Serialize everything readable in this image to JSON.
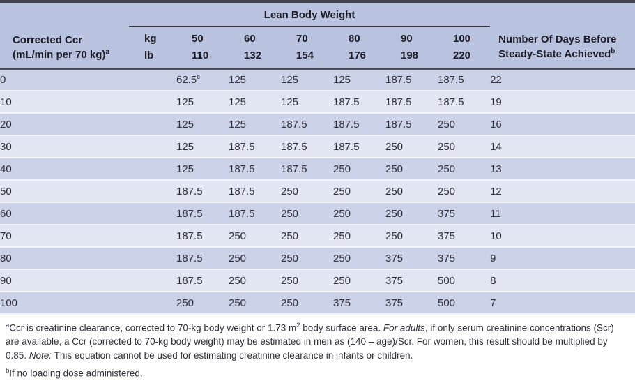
{
  "colors": {
    "header_bg": "#b9c3e0",
    "row_dark": "#ccd3e8",
    "row_light": "#e2e5f2",
    "rule_dark": "#43434c",
    "divider": "#4c4c57",
    "row_gap": "#f2f4fa",
    "text_dark": "#1d1d27",
    "text_body": "#2e2e38"
  },
  "table": {
    "group_header": "Lean Body Weight",
    "row_header": {
      "line1": "Corrected Ccr",
      "line2": "(mL/min per 70 kg)",
      "sup": "a"
    },
    "days_header": {
      "line1": "Number Of Days Before",
      "line2": "Steady-State Achieved",
      "sup": "b"
    },
    "unit_rows": [
      {
        "unit": "kg",
        "values": [
          "50",
          "60",
          "70",
          "80",
          "90",
          "100"
        ]
      },
      {
        "unit": "lb",
        "values": [
          "110",
          "132",
          "154",
          "176",
          "198",
          "220"
        ]
      }
    ],
    "rows": [
      {
        "ccr": "0",
        "values": [
          {
            "v": "62.5",
            "sup": "c"
          },
          "125",
          "125",
          "125",
          "187.5",
          "187.5"
        ],
        "days": "22"
      },
      {
        "ccr": "10",
        "values": [
          "125",
          "125",
          "125",
          "187.5",
          "187.5",
          "187.5"
        ],
        "days": "19"
      },
      {
        "ccr": "20",
        "values": [
          "125",
          "125",
          "187.5",
          "187.5",
          "187.5",
          "250"
        ],
        "days": "16"
      },
      {
        "ccr": "30",
        "values": [
          "125",
          "187.5",
          "187.5",
          "187.5",
          "250",
          "250"
        ],
        "days": "14"
      },
      {
        "ccr": "40",
        "values": [
          "125",
          "187.5",
          "187.5",
          "250",
          "250",
          "250"
        ],
        "days": "13"
      },
      {
        "ccr": "50",
        "values": [
          "187.5",
          "187.5",
          "250",
          "250",
          "250",
          "250"
        ],
        "days": "12"
      },
      {
        "ccr": "60",
        "values": [
          "187.5",
          "187.5",
          "250",
          "250",
          "250",
          "375"
        ],
        "days": "11"
      },
      {
        "ccr": "70",
        "values": [
          "187.5",
          "250",
          "250",
          "250",
          "250",
          "375"
        ],
        "days": "10"
      },
      {
        "ccr": "80",
        "values": [
          "187.5",
          "250",
          "250",
          "250",
          "375",
          "375"
        ],
        "days": "9"
      },
      {
        "ccr": "90",
        "values": [
          "187.5",
          "250",
          "250",
          "250",
          "375",
          "500"
        ],
        "days": "8"
      },
      {
        "ccr": "100",
        "values": [
          "250",
          "250",
          "250",
          "375",
          "375",
          "500"
        ],
        "days": "7"
      }
    ]
  },
  "footnotes": {
    "a": [
      {
        "t": "a",
        "sup": true
      },
      {
        "t": "Ccr is creatinine clearance, corrected to 70-kg body weight or 1.73 m"
      },
      {
        "t": "2",
        "sup": true
      },
      {
        "t": " body surface area. "
      },
      {
        "t": "For adults",
        "italic": true
      },
      {
        "t": ", if only serum creatinine concentrations (Scr) are available, a Ccr (corrected to 70-kg body weight) may be estimated in men as (140 – age)/Scr. For women, this result should be multiplied by 0.85. "
      },
      {
        "t": "Note:",
        "italic": true
      },
      {
        "t": " This equation cannot be used for estimating creatinine clearance in infants or children."
      }
    ],
    "b": [
      {
        "t": "b",
        "sup": true
      },
      {
        "t": "If no loading dose administered."
      }
    ]
  }
}
